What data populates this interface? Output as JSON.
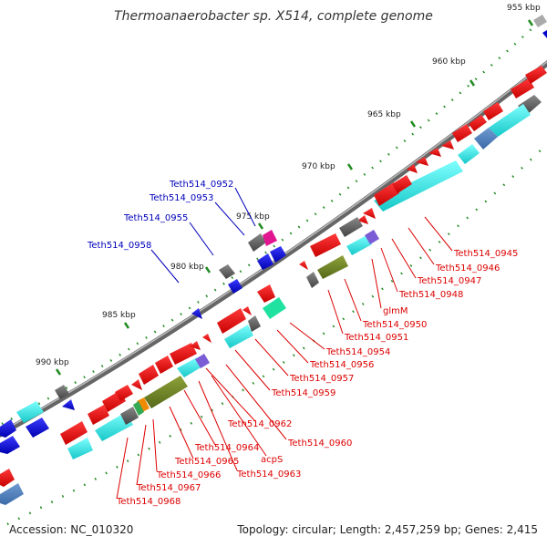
{
  "title": "Thermoanaerobacter sp. X514, complete genome",
  "footer": {
    "accession": "Accession: NC_010320",
    "summary": "Topology: circular; Length: 2,457,259 bp; Genes: 2,415"
  },
  "colors": {
    "forward": "#ff0000",
    "reverse": "#0000ff",
    "backbone": "#777777",
    "tick": "#228b22",
    "forward_label": "#dd0000",
    "reverse_label": "#0000bb"
  },
  "ruler": [
    "955 kbp",
    "960 kbp",
    "965 kbp",
    "970 kbp",
    "975 kbp",
    "980 kbp",
    "985 kbp",
    "990 kbp"
  ],
  "reverse_labels": [
    "Teth514_0952",
    "Teth514_0953",
    "Teth514_0955",
    "Teth514_0958"
  ],
  "forward_labels": [
    "Teth514_0945",
    "Teth514_0946",
    "Teth514_0947",
    "Teth514_0948",
    "glmM",
    "Teth514_0950",
    "Teth514_0951",
    "Teth514_0954",
    "Teth514_0956",
    "Teth514_0957",
    "Teth514_0959",
    "Teth514_0960",
    "Teth514_0962",
    "acpS",
    "Teth514_0963",
    "Teth514_0964",
    "Teth514_0965",
    "Teth514_0966",
    "Teth514_0967",
    "Teth514_0968"
  ]
}
